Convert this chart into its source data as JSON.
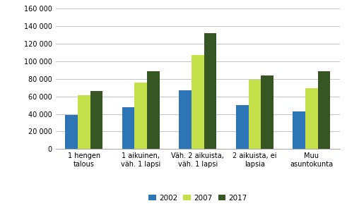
{
  "categories": [
    "1 hengen\ntalous",
    "1 aikuinen,\nväh. 1 lapsi",
    "Väh. 2 aikuista,\nväh. 1 lapsi",
    "2 aikuista, ei\nlapsia",
    "Muu\nasuntokunta"
  ],
  "series": {
    "2002": [
      39000,
      48000,
      67000,
      50000,
      43000
    ],
    "2007": [
      61000,
      76000,
      107000,
      79000,
      69000
    ],
    "2017": [
      66000,
      89000,
      132000,
      84000,
      89000
    ]
  },
  "colors": {
    "2002": "#2E75B6",
    "2007": "#C5E04A",
    "2017": "#375623"
  },
  "ylim": [
    0,
    160000
  ],
  "yticks": [
    0,
    20000,
    40000,
    60000,
    80000,
    100000,
    120000,
    140000,
    160000
  ],
  "bar_width": 0.22,
  "legend_labels": [
    "2002",
    "2007",
    "2017"
  ],
  "background_color": "#ffffff",
  "grid_color": "#bbbbbb",
  "tick_fontsize": 7.0,
  "legend_fontsize": 7.5
}
